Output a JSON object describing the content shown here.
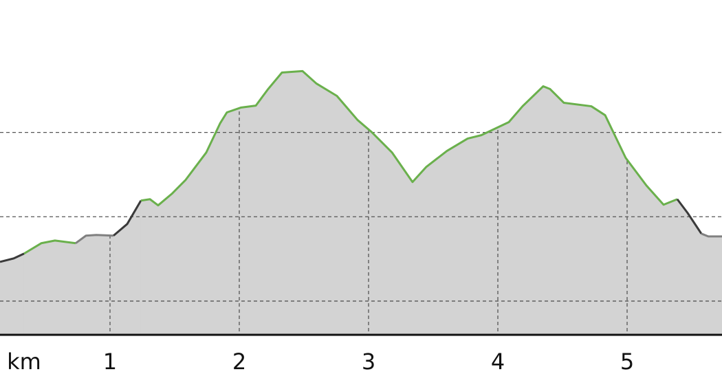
{
  "chart_data": {
    "type": "area",
    "x_label": "km",
    "xlim": [
      0.149,
      5.734
    ],
    "xticks": [
      1,
      2,
      3,
      4,
      5
    ],
    "ylim": [
      60,
      457
    ],
    "ygrid": [
      100,
      200,
      300
    ],
    "fill": "#d3d3d3",
    "grid": true,
    "series": [
      {
        "color": "#3a3a3a",
        "x": [
          0.149,
          0.255,
          0.335
        ],
        "values": [
          146.5,
          150.6,
          156.3
        ]
      },
      {
        "color": "#6ab04c",
        "x": [
          0.335,
          0.468,
          0.574,
          0.734
        ],
        "values": [
          156.3,
          168.6,
          171.8,
          168.6
        ]
      },
      {
        "color": "#808080",
        "x": [
          0.734,
          0.814,
          0.894,
          1.027
        ],
        "values": [
          168.6,
          177.6,
          178.4,
          177.6
        ]
      },
      {
        "color": "#3a3a3a",
        "x": [
          1.027,
          1.133,
          1.239
        ],
        "values": [
          177.6,
          191.4,
          219.2
        ]
      },
      {
        "color": "#6ab04c",
        "x": [
          1.239,
          1.309,
          1.372,
          1.479,
          1.585,
          1.745,
          1.851,
          1.904,
          2.011,
          2.128,
          2.223,
          2.33,
          2.489,
          2.596,
          2.755,
          2.915,
          3.021,
          3.181,
          3.34,
          3.447,
          3.606,
          3.766,
          3.872,
          4.085,
          4.191,
          4.351,
          4.404,
          4.511,
          4.723,
          4.83,
          4.989,
          5.149,
          5.282,
          5.388
        ],
        "values": [
          219.2,
          220.8,
          213.5,
          227.3,
          243.7,
          276.3,
          310.6,
          323.7,
          329.4,
          331.8,
          351.4,
          371.0,
          372.7,
          358.0,
          343.3,
          314.7,
          300.8,
          276.3,
          241.2,
          259.2,
          278.0,
          292.7,
          296.7,
          312.2,
          331.0,
          354.7,
          351.4,
          335.1,
          331.0,
          320.4,
          269.8,
          237.1,
          214.3,
          220.8
        ]
      },
      {
        "color": "#3a3a3a",
        "x": [
          5.388,
          5.468,
          5.574
        ],
        "values": [
          220.8,
          204.5,
          180.0
        ]
      },
      {
        "color": "#808080",
        "x": [
          5.574,
          5.628,
          5.734
        ],
        "values": [
          180.0,
          176.7,
          176.7
        ]
      }
    ]
  }
}
